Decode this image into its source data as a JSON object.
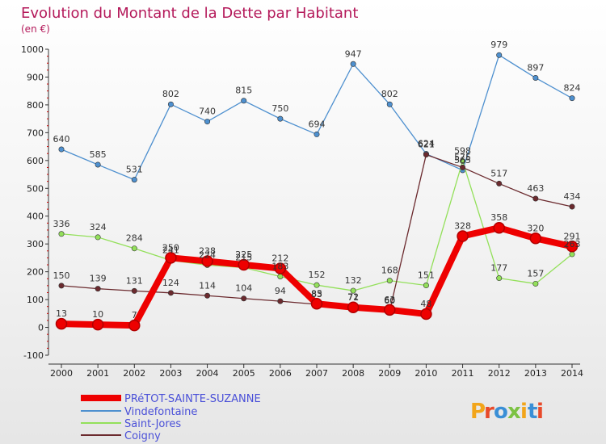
{
  "chart_data": {
    "type": "line",
    "title": "Evolution du Montant de la Dette par Habitant",
    "subtitle": "(en €)",
    "xlabel": "",
    "ylabel": "",
    "x": [
      "2000",
      "2001",
      "2002",
      "2003",
      "2004",
      "2005",
      "2006",
      "2007",
      "2008",
      "2009",
      "2010",
      "2011",
      "2012",
      "2013",
      "2014"
    ],
    "ylim": [
      -100,
      1000
    ],
    "yticks": [
      "-100",
      "0",
      "100",
      "200",
      "300",
      "400",
      "500",
      "600",
      "700",
      "800",
      "900",
      "1000"
    ],
    "grid": false,
    "legend_position": "bottom-left",
    "series": [
      {
        "name": "PRéTOT-SAINTE-SUZANNE",
        "color": "#ee0000",
        "values": [
          13,
          10,
          7,
          250,
          238,
          225,
          212,
          85,
          72,
          63,
          48,
          328,
          358,
          320,
          291
        ],
        "labels": [
          "13",
          "10",
          "7",
          "250",
          "238",
          "225",
          "212",
          "85",
          "72",
          "63",
          "48",
          "328",
          "358",
          "320",
          "291"
        ]
      },
      {
        "name": "Vindefontaine",
        "color": "#4e90cf",
        "values": [
          640,
          585,
          531,
          802,
          740,
          815,
          750,
          694,
          947,
          802,
          624,
          565,
          979,
          897,
          824
        ],
        "labels": [
          "640",
          "585",
          "531",
          "802",
          "740",
          "815",
          "750",
          "694",
          "947",
          "802",
          "624",
          "565",
          "979",
          "897",
          "824"
        ]
      },
      {
        "name": "Saint-Jores",
        "color": "#93e05a",
        "values": [
          336,
          324,
          284,
          241,
          224,
          215,
          183,
          152,
          132,
          168,
          151,
          598,
          177,
          157,
          263
        ],
        "labels": [
          "336",
          "324",
          "284",
          "241",
          "224",
          "215",
          "183",
          "152",
          "132",
          "168",
          "151",
          "598",
          "177",
          "157",
          "263"
        ]
      },
      {
        "name": "Coigny",
        "color": "#6b2a2e",
        "values": [
          150,
          139,
          131,
          124,
          114,
          104,
          94,
          83,
          71,
          60,
          621,
          575,
          517,
          463,
          434
        ],
        "labels": [
          "150",
          "139",
          "131",
          "124",
          "114",
          "104",
          "94",
          "83",
          "71",
          "60",
          "621",
          "575",
          "517",
          "463",
          "434"
        ]
      }
    ],
    "watermark": "Proxiti"
  }
}
